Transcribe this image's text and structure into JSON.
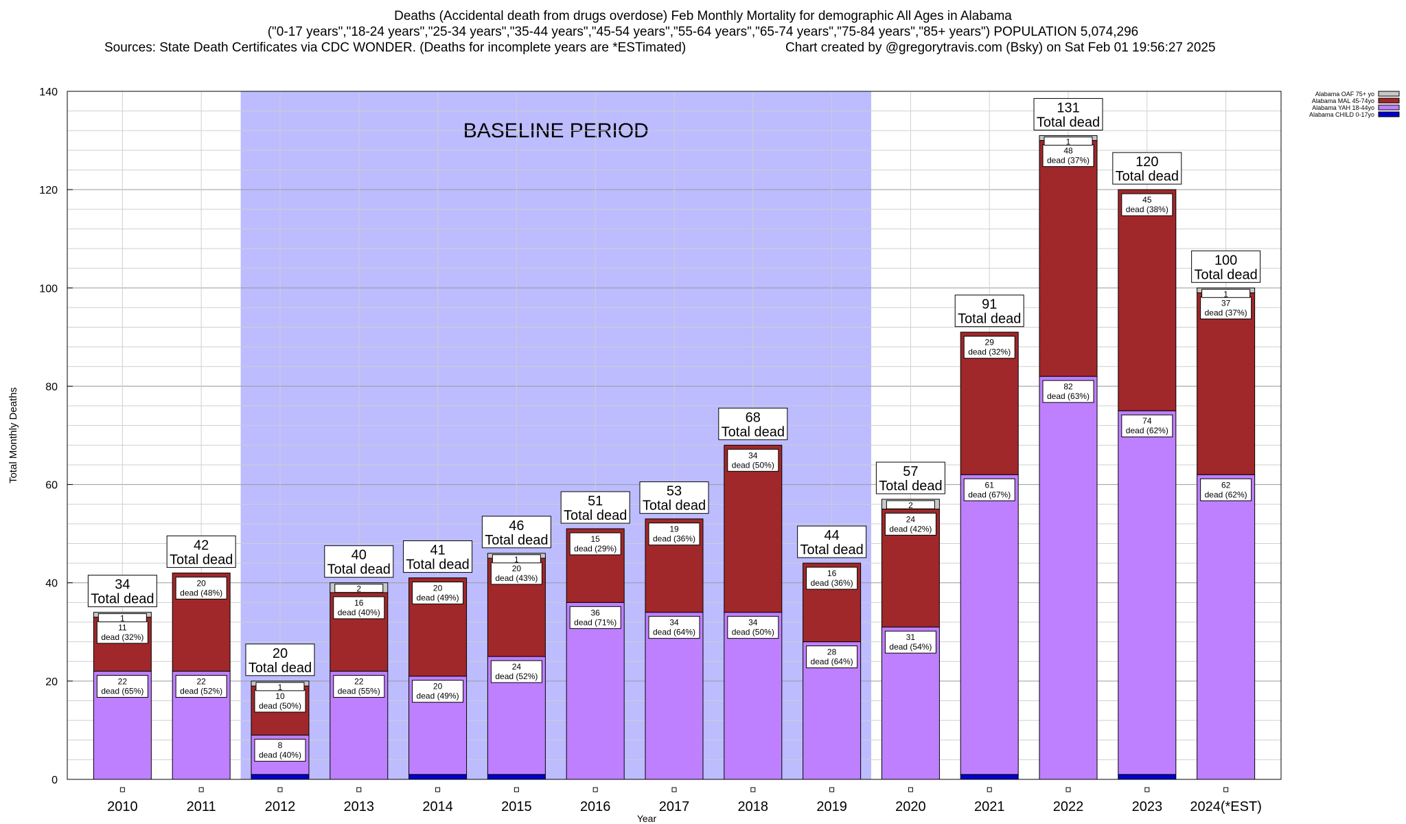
{
  "header": {
    "line1": "Deaths (Accidental death from drugs overdose) Feb Monthly Mortality for demographic All Ages in Alabama",
    "line2": "(\"0-17 years\",\"18-24 years\",\"25-34 years\",\"35-44 years\",\"45-54 years\",\"55-64 years\",\"65-74 years\",\"75-84 years\",\"85+ years\") POPULATION 5,074,296",
    "line3_left": "Sources: State Death Certificates via CDC WONDER. (Deaths for incomplete years are *ESTimated)",
    "line3_right": "Chart created by @gregorytravis.com (Bsky) on Sat Feb 01 19:56:27 2025"
  },
  "chart_data": {
    "type": "bar",
    "stacked": true,
    "categories": [
      "2010",
      "2011",
      "2012",
      "2013",
      "2014",
      "2015",
      "2016",
      "2017",
      "2018",
      "2019",
      "2020",
      "2021",
      "2022",
      "2023",
      "2024(*EST)"
    ],
    "series": [
      {
        "name": "Alabama CHILD 0-17yo",
        "color": "#0000cc",
        "values": [
          0,
          0,
          1,
          0,
          1,
          1,
          0,
          0,
          0,
          0,
          0,
          1,
          0,
          1,
          0
        ]
      },
      {
        "name": "Alabama YAH 18-44yo",
        "color": "#bf80ff",
        "values": [
          22,
          22,
          8,
          22,
          20,
          24,
          36,
          34,
          34,
          28,
          31,
          61,
          82,
          74,
          62
        ]
      },
      {
        "name": "Alabama MAL 45-74yo",
        "color": "#a0282a",
        "values": [
          11,
          20,
          10,
          16,
          20,
          20,
          15,
          19,
          34,
          16,
          24,
          29,
          48,
          45,
          37
        ]
      },
      {
        "name": "Alabama OAF 75+ yo",
        "color": "#c8c8c8",
        "values": [
          1,
          0,
          1,
          2,
          0,
          1,
          0,
          0,
          0,
          0,
          2,
          0,
          1,
          0,
          1
        ]
      }
    ],
    "segment_labels": {
      "Alabama YAH 18-44yo": [
        "22|dead (65%)",
        "22|dead (52%)",
        "8|dead (40%)",
        "22|dead (55%)",
        "20|dead (49%)",
        "24|dead (52%)",
        "36|dead (71%)",
        "34|dead (64%)",
        "34|dead (50%)",
        "28|dead (64%)",
        "31|dead (54%)",
        "61|dead (67%)",
        "82|dead (63%)",
        "74|dead (62%)",
        "62|dead (62%)"
      ],
      "Alabama MAL 45-74yo": [
        "11|dead (32%)",
        "20|dead (48%)",
        "10|dead (50%)",
        "16|dead (40%)",
        "20|dead (49%)",
        "20|dead (43%)",
        "15|dead (29%)",
        "19|dead (36%)",
        "34|dead (50%)",
        "16|dead (36%)",
        "24|dead (42%)",
        "29|dead (32%)",
        "48|dead (37%)",
        "45|dead (38%)",
        "37|dead (37%)"
      ],
      "Alabama OAF 75+ yo": [
        "1",
        "",
        "1",
        "2",
        "",
        "1",
        "",
        "",
        "",
        "",
        "2",
        "",
        "1",
        "",
        "1"
      ]
    },
    "totals": [
      34,
      42,
      20,
      40,
      41,
      46,
      51,
      53,
      68,
      44,
      57,
      91,
      131,
      120,
      100
    ],
    "total_suffix": "Total dead",
    "xlabel": "Year",
    "ylabel": "Total Monthly Deaths",
    "ylim": [
      0,
      140
    ],
    "yticks": [
      0,
      20,
      40,
      60,
      80,
      100,
      120,
      140
    ],
    "grid": true,
    "legend_position": "top-right",
    "baseline": {
      "label": "BASELINE PERIOD",
      "from": "2012",
      "to": "2019",
      "color": "#bcbcff"
    }
  }
}
